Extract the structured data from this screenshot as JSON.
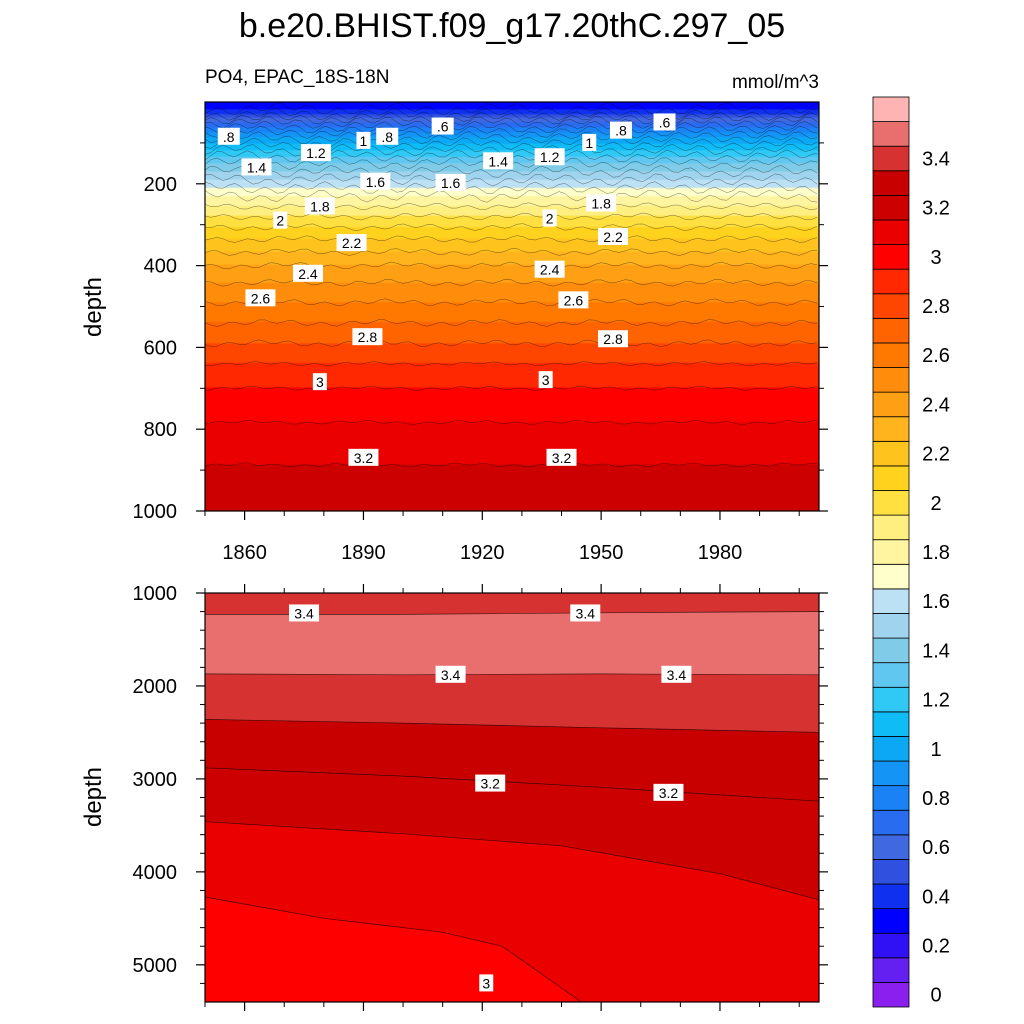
{
  "chart_data": [
    {
      "type": "heatmap",
      "panel": "upper",
      "title": "b.e20.BHIST.f09_g17.20thC.297_05",
      "subtitle_left": "PO4, EPAC_18S-18N",
      "subtitle_right": "mmol/m^3",
      "xlabel": "",
      "ylabel": "depth",
      "xlim": [
        1850,
        2005
      ],
      "ylim": [
        0,
        1000
      ],
      "y_reversed": true,
      "x_ticks": [
        1860,
        1890,
        1920,
        1950,
        1980
      ],
      "x_tick_labels": [
        "1860",
        "1890",
        "1920",
        "1950",
        "1980"
      ],
      "y_ticks": [
        200,
        400,
        600,
        800,
        1000
      ],
      "y_tick_labels": [
        "200",
        "400",
        "600",
        "800",
        "1000"
      ],
      "profile": {
        "depth": [
          0,
          25,
          50,
          80,
          110,
          140,
          170,
          200,
          230,
          260,
          300,
          350,
          400,
          450,
          500,
          550,
          600,
          650,
          700,
          750,
          800,
          850,
          900,
          950,
          1000
        ],
        "value": [
          0.3,
          0.45,
          0.7,
          0.95,
          1.15,
          1.35,
          1.5,
          1.65,
          1.8,
          1.92,
          2.08,
          2.25,
          2.4,
          2.52,
          2.62,
          2.72,
          2.82,
          2.92,
          3.0,
          3.06,
          3.12,
          3.17,
          3.21,
          3.24,
          3.27
        ]
      },
      "contour_labels": [
        {
          "text": ".8",
          "year": 1856,
          "depth": 85
        },
        {
          "text": "1.2",
          "year": 1878,
          "depth": 125
        },
        {
          "text": "1",
          "year": 1890,
          "depth": 95
        },
        {
          "text": ".8",
          "year": 1896,
          "depth": 85
        },
        {
          "text": ".6",
          "year": 1910,
          "depth": 60
        },
        {
          "text": "1.4",
          "year": 1863,
          "depth": 160
        },
        {
          "text": "1.6",
          "year": 1893,
          "depth": 195
        },
        {
          "text": "1.6",
          "year": 1912,
          "depth": 198
        },
        {
          "text": "1.4",
          "year": 1924,
          "depth": 145
        },
        {
          "text": "1.2",
          "year": 1937,
          "depth": 135
        },
        {
          "text": "1",
          "year": 1947,
          "depth": 100
        },
        {
          "text": ".8",
          "year": 1955,
          "depth": 70
        },
        {
          "text": ".6",
          "year": 1966,
          "depth": 50
        },
        {
          "text": "1.8",
          "year": 1879,
          "depth": 255
        },
        {
          "text": "1.8",
          "year": 1950,
          "depth": 248
        },
        {
          "text": "2",
          "year": 1869,
          "depth": 290
        },
        {
          "text": "2",
          "year": 1937,
          "depth": 285
        },
        {
          "text": "2.2",
          "year": 1887,
          "depth": 345
        },
        {
          "text": "2.2",
          "year": 1953,
          "depth": 330
        },
        {
          "text": "2.4",
          "year": 1876,
          "depth": 420
        },
        {
          "text": "2.4",
          "year": 1937,
          "depth": 410
        },
        {
          "text": "2.6",
          "year": 1864,
          "depth": 480
        },
        {
          "text": "2.6",
          "year": 1943,
          "depth": 485
        },
        {
          "text": "2.8",
          "year": 1891,
          "depth": 575
        },
        {
          "text": "2.8",
          "year": 1953,
          "depth": 580
        },
        {
          "text": "3",
          "year": 1879,
          "depth": 685
        },
        {
          "text": "3",
          "year": 1936,
          "depth": 680
        },
        {
          "text": "3.2",
          "year": 1890,
          "depth": 870
        },
        {
          "text": "3.2",
          "year": 1940,
          "depth": 870
        }
      ]
    },
    {
      "type": "heatmap",
      "panel": "lower",
      "xlabel": "",
      "ylabel": "depth",
      "xlim": [
        1850,
        2005
      ],
      "ylim": [
        1000,
        5400
      ],
      "y_reversed": true,
      "y_ticks": [
        1000,
        2000,
        3000,
        4000,
        5000
      ],
      "y_tick_labels": [
        "1000",
        "2000",
        "3000",
        "4000",
        "5000"
      ],
      "x_ticks": [
        1860,
        1890,
        1920,
        1950,
        1980
      ],
      "contours": [
        {
          "level": 3.45,
          "upper_fill": "3.4",
          "points": [
            [
              1850,
              1230
            ],
            [
              1900,
              1230
            ],
            [
              1960,
              1210
            ],
            [
              2005,
              1200
            ]
          ]
        },
        {
          "level": 3.45,
          "upper_fill": "3.5",
          "points": [
            [
              1850,
              1870
            ],
            [
              1900,
              1880
            ],
            [
              1950,
              1870
            ],
            [
              2005,
              1880
            ]
          ]
        },
        {
          "level": 3.35,
          "upper_fill": "3.4",
          "points": [
            [
              1850,
              2360
            ],
            [
              1900,
              2400
            ],
            [
              1950,
              2450
            ],
            [
              2005,
              2500
            ]
          ]
        },
        {
          "level": 3.25,
          "upper_fill": "3.3",
          "points": [
            [
              1850,
              2880
            ],
            [
              1900,
              2970
            ],
            [
              1950,
              3090
            ],
            [
              2005,
              3240
            ]
          ]
        },
        {
          "level": 3.15,
          "upper_fill": "3.2",
          "points": [
            [
              1850,
              3460
            ],
            [
              1900,
              3590
            ],
            [
              1940,
              3720
            ],
            [
              1980,
              4020
            ],
            [
              2005,
              4300
            ]
          ]
        },
        {
          "level": 3.05,
          "upper_fill": "3.1",
          "points": [
            [
              1850,
              4270
            ],
            [
              1880,
              4500
            ],
            [
              1910,
              4650
            ],
            [
              1925,
              4800
            ],
            [
              1945,
              5400
            ]
          ]
        }
      ],
      "contour_labels": [
        {
          "text": "3.4",
          "year": 1875,
          "depth": 1220
        },
        {
          "text": "3.4",
          "year": 1946,
          "depth": 1220
        },
        {
          "text": "3.4",
          "year": 1912,
          "depth": 1880
        },
        {
          "text": "3.4",
          "year": 1969,
          "depth": 1880
        },
        {
          "text": "3.2",
          "year": 1922,
          "depth": 3050
        },
        {
          "text": "3.2",
          "year": 1967,
          "depth": 3150
        },
        {
          "text": "3",
          "year": 1921,
          "depth": 5200
        }
      ]
    }
  ],
  "colorbar": {
    "levels": [
      0,
      0.1,
      0.2,
      0.3,
      0.4,
      0.5,
      0.6,
      0.7,
      0.8,
      0.9,
      1.0,
      1.1,
      1.2,
      1.3,
      1.4,
      1.5,
      1.6,
      1.7,
      1.8,
      1.9,
      2.0,
      2.1,
      2.2,
      2.3,
      2.4,
      2.5,
      2.6,
      2.7,
      2.8,
      2.9,
      3.0,
      3.1,
      3.2,
      3.3,
      3.4,
      3.5,
      3.6
    ],
    "colors": [
      "#8a1ff0",
      "#6420f0",
      "#3010f5",
      "#0000ff",
      "#1030f0",
      "#3050e0",
      "#4068e0",
      "#2a6cf0",
      "#1a82f5",
      "#1494f5",
      "#0ca8f5",
      "#10bcf5",
      "#30c8f5",
      "#60c8f0",
      "#80cce8",
      "#a0d4ee",
      "#bce0f4",
      "#ffffcc",
      "#fff5a0",
      "#ffee80",
      "#ffe040",
      "#ffd21e",
      "#ffc31e",
      "#ffb41e",
      "#ffa014",
      "#ff8c0a",
      "#ff7800",
      "#ff6400",
      "#ff4600",
      "#ff2800",
      "#ff0000",
      "#eb0000",
      "#cd0000",
      "#c80000",
      "#d73232",
      "#e96e6e",
      "#ffb4b4"
    ],
    "tick_labels": [
      {
        "text": "3.4",
        "value": 3.4
      },
      {
        "text": "3.2",
        "value": 3.2
      },
      {
        "text": "3",
        "value": 3.0
      },
      {
        "text": "2.8",
        "value": 2.8
      },
      {
        "text": "2.6",
        "value": 2.6
      },
      {
        "text": "2.4",
        "value": 2.4
      },
      {
        "text": "2.2",
        "value": 2.2
      },
      {
        "text": "2",
        "value": 2.0
      },
      {
        "text": "1.8",
        "value": 1.8
      },
      {
        "text": "1.6",
        "value": 1.6
      },
      {
        "text": "1.4",
        "value": 1.4
      },
      {
        "text": "1.2",
        "value": 1.2
      },
      {
        "text": "1",
        "value": 1.0
      },
      {
        "text": "0.8",
        "value": 0.8
      },
      {
        "text": "0.6",
        "value": 0.6
      },
      {
        "text": "0.4",
        "value": 0.4
      },
      {
        "text": "0.2",
        "value": 0.2
      },
      {
        "text": "0",
        "value": 0.0
      }
    ]
  }
}
